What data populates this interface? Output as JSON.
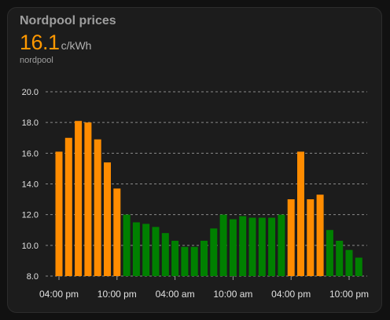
{
  "card": {
    "title": "Nordpool prices",
    "value": "16.1",
    "unit": "c/kWh",
    "subtitle": "nordpool"
  },
  "colors": {
    "high": "#ff8c00",
    "low": "#008000",
    "background": "#1c1c1c",
    "grid": "#9e9e9e"
  },
  "chart_data": {
    "type": "bar",
    "ylim": [
      8.0,
      20.0
    ],
    "yticks": [
      "20.0",
      "18.0",
      "16.0",
      "14.0",
      "12.0",
      "10.0",
      "8.0"
    ],
    "ytick_values": [
      20,
      18,
      16,
      14,
      12,
      10,
      8
    ],
    "xticks": [
      "04:00 pm",
      "10:00 pm",
      "04:00 am",
      "10:00 am",
      "04:00 pm",
      "10:00 pm"
    ],
    "xtick_hour_index": [
      0,
      6,
      12,
      18,
      24,
      30
    ],
    "grid": true,
    "series": [
      {
        "values": [
          16.1,
          17.0,
          18.1,
          18.0,
          16.9,
          15.4,
          13.7,
          12.0,
          11.5,
          11.4,
          11.2,
          10.8,
          10.3,
          9.9,
          9.9,
          10.3,
          11.1,
          12.0,
          11.7,
          11.9,
          11.8,
          11.8,
          11.8,
          12.0,
          13.0,
          16.1,
          13.0,
          13.3,
          11.0,
          10.3,
          9.7,
          9.2
        ],
        "colors": [
          "high",
          "high",
          "high",
          "high",
          "high",
          "high",
          "high",
          "low",
          "low",
          "low",
          "low",
          "low",
          "low",
          "low",
          "low",
          "low",
          "low",
          "low",
          "low",
          "low",
          "low",
          "low",
          "low",
          "low",
          "high",
          "high",
          "high",
          "high",
          "low",
          "low",
          "low",
          "low"
        ]
      }
    ]
  }
}
